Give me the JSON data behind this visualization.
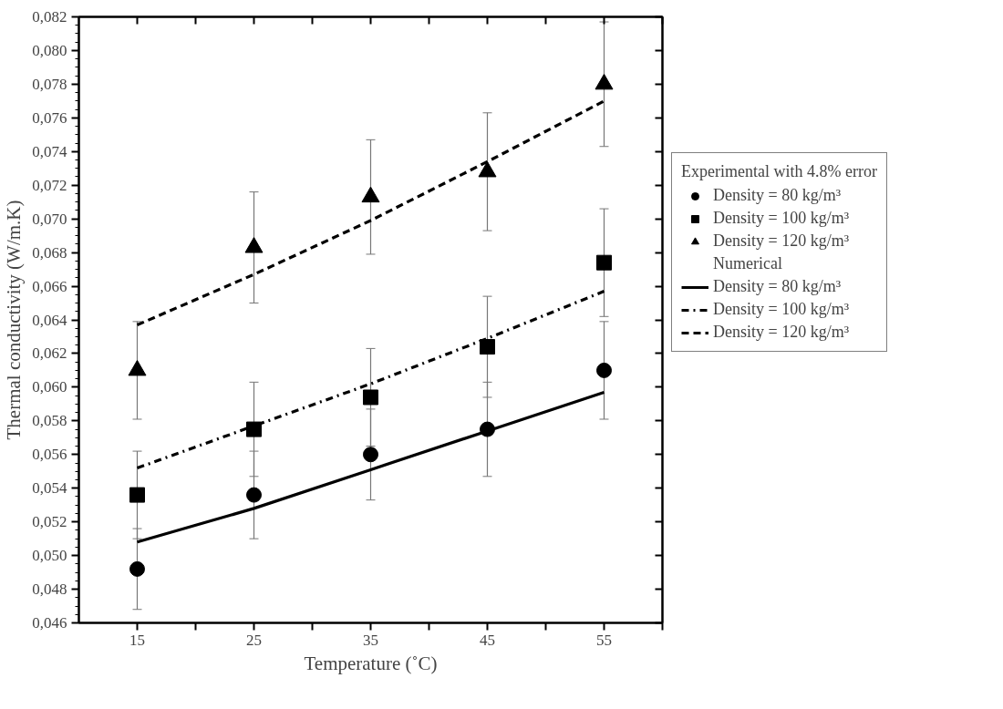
{
  "chart_data": {
    "type": "scatter",
    "xlabel": "Temperature (˚C)",
    "ylabel": "Thermal conductivity (W/m.K)",
    "legend_title": "Experimental with 4.8% error",
    "annotations": [
      "Numerical"
    ],
    "x": [
      15,
      25,
      35,
      45,
      55
    ],
    "series": [
      {
        "name": "Density = 80 kg/m³",
        "marker": "circle",
        "color": "#000000",
        "values": [
          0.0492,
          0.0536,
          0.056,
          0.0575,
          0.061
        ],
        "errors": [
          0.0024,
          0.0026,
          0.0027,
          0.0028,
          0.0029
        ]
      },
      {
        "name": "Density = 100 kg/m³",
        "marker": "square",
        "color": "#000000",
        "values": [
          0.0536,
          0.0575,
          0.0594,
          0.0624,
          0.0674
        ],
        "errors": [
          0.0026,
          0.0028,
          0.0029,
          0.003,
          0.0032
        ]
      },
      {
        "name": "Density = 120 kg/m³",
        "marker": "triangle",
        "color": "#000000",
        "values": [
          0.061,
          0.0683,
          0.0713,
          0.0728,
          0.078
        ],
        "errors": [
          0.0029,
          0.0033,
          0.0034,
          0.0035,
          0.0037
        ]
      },
      {
        "name": "Density = 80 kg/m³",
        "type": "line",
        "line_style": "solid",
        "color": "#000000",
        "values": [
          0.0508,
          0.0528,
          0.0551,
          0.0574,
          0.0597
        ]
      },
      {
        "name": "Density = 100 kg/m³",
        "type": "line",
        "line_style": "dashdot",
        "color": "#000000",
        "values": [
          0.0552,
          0.0577,
          0.0602,
          0.0629,
          0.0657
        ]
      },
      {
        "name": "Density = 120 kg/m³",
        "type": "line",
        "line_style": "dashed",
        "color": "#000000",
        "values": [
          0.0637,
          0.0667,
          0.0699,
          0.0734,
          0.077
        ]
      }
    ],
    "xlim": [
      10,
      60
    ],
    "xticks": [
      15,
      {
        "value": 20,
        "label": null
      },
      25,
      {
        "value": 30,
        "label": null
      },
      35,
      {
        "value": 40,
        "label": null
      },
      45,
      {
        "value": 50,
        "label": null
      },
      55,
      {
        "value": 60,
        "label": null
      }
    ],
    "ylim": [
      0.046,
      0.082
    ],
    "yticks": [
      {
        "value": 0.046,
        "label": "0,046"
      },
      {
        "value": 0.048,
        "label": "0,048"
      },
      {
        "value": 0.05,
        "label": "0,050"
      },
      {
        "value": 0.052,
        "label": "0,052"
      },
      {
        "value": 0.054,
        "label": "0,054"
      },
      {
        "value": 0.056,
        "label": "0,056"
      },
      {
        "value": 0.058,
        "label": "0,058"
      },
      {
        "value": 0.06,
        "label": "0,060"
      },
      {
        "value": 0.062,
        "label": "0,062"
      },
      {
        "value": 0.064,
        "label": "0,064"
      },
      {
        "value": 0.066,
        "label": "0,066"
      },
      {
        "value": 0.068,
        "label": "0,068"
      },
      {
        "value": 0.07,
        "label": "0,070"
      },
      {
        "value": 0.072,
        "label": "0,072"
      },
      {
        "value": 0.074,
        "label": "0,074"
      },
      {
        "value": 0.076,
        "label": "0,076"
      },
      {
        "value": 0.078,
        "label": "0,078"
      },
      {
        "value": 0.08,
        "label": "0,080"
      },
      {
        "value": 0.082,
        "label": "0,082"
      }
    ],
    "grid": false,
    "legend": "right"
  }
}
